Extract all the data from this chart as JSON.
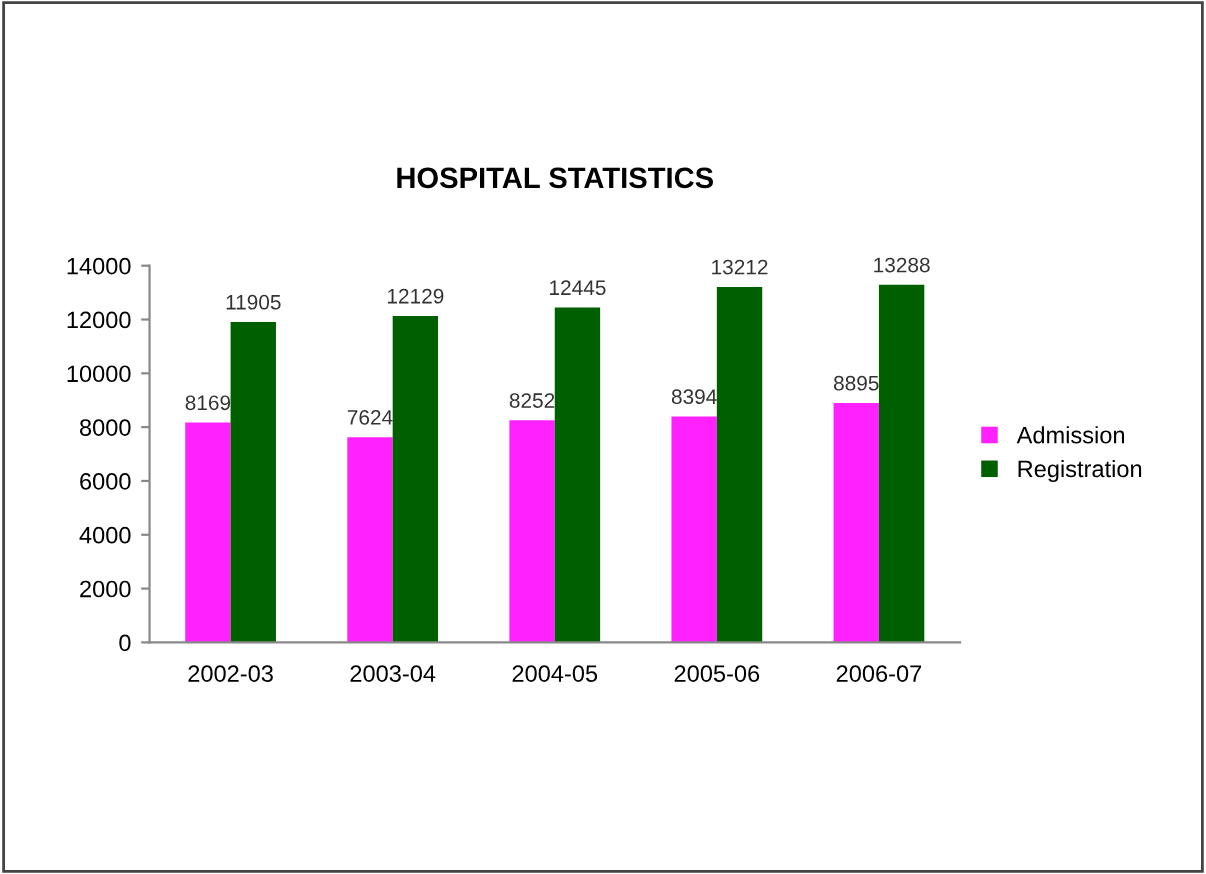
{
  "chart_data": {
    "type": "bar",
    "title": "HOSPITAL STATISTICS",
    "categories": [
      "2002-03",
      "2003-04",
      "2004-05",
      "2005-06",
      "2006-07"
    ],
    "series": [
      {
        "name": "Admission",
        "color": "#ff22ff",
        "values": [
          8169,
          7624,
          8252,
          8394,
          8895
        ]
      },
      {
        "name": "Registration",
        "color": "#006000",
        "values": [
          11905,
          12129,
          12445,
          13212,
          13288
        ]
      }
    ],
    "ylim": [
      0,
      14000
    ],
    "yticks": [
      0,
      2000,
      4000,
      6000,
      8000,
      10000,
      12000,
      14000
    ],
    "data_labels": true,
    "legend": "right",
    "grid": false
  }
}
